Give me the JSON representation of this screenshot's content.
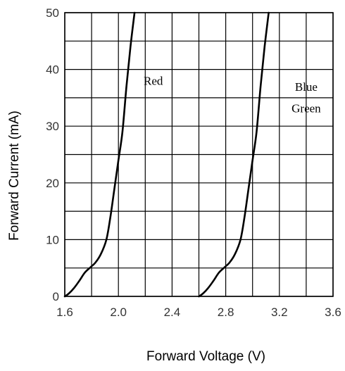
{
  "chart_data": {
    "type": "line",
    "xlabel": "Forward Voltage (V)",
    "ylabel": "Forward Current (mA)",
    "xlim": [
      1.6,
      3.6
    ],
    "ylim": [
      0,
      50
    ],
    "x_ticks": [
      "1.6",
      "2.0",
      "2.4",
      "2.8",
      "3.2",
      "3.6"
    ],
    "y_ticks": [
      "0",
      "10",
      "20",
      "30",
      "40",
      "50"
    ],
    "grid": true,
    "legend": "none",
    "annotations": [
      {
        "text": "Red",
        "x": 2.26,
        "y": 38
      },
      {
        "text": "Blue",
        "x": 3.4,
        "y": 37
      },
      {
        "text": "Green",
        "x": 3.4,
        "y": 33.2
      }
    ],
    "series": [
      {
        "x": [
          1.6,
          1.63,
          1.67,
          1.71,
          1.75,
          1.79,
          1.83,
          1.87,
          1.91,
          1.94,
          1.97,
          2.0,
          2.03,
          2.06,
          2.09,
          2.12
        ],
        "y": [
          0.0,
          0.5,
          1.5,
          2.8,
          4.2,
          5.1,
          6.0,
          7.5,
          10.0,
          14.0,
          19.0,
          24.0,
          29.0,
          37.0,
          44.0,
          50.0
        ]
      },
      {
        "x": [
          2.6,
          2.63,
          2.67,
          2.71,
          2.75,
          2.79,
          2.83,
          2.87,
          2.91,
          2.94,
          2.97,
          3.0,
          3.03,
          3.06,
          3.09,
          3.12
        ],
        "y": [
          0.0,
          0.5,
          1.5,
          2.8,
          4.2,
          5.1,
          6.0,
          7.5,
          10.0,
          14.0,
          19.0,
          24.0,
          29.0,
          37.0,
          44.0,
          50.0
        ]
      }
    ]
  }
}
